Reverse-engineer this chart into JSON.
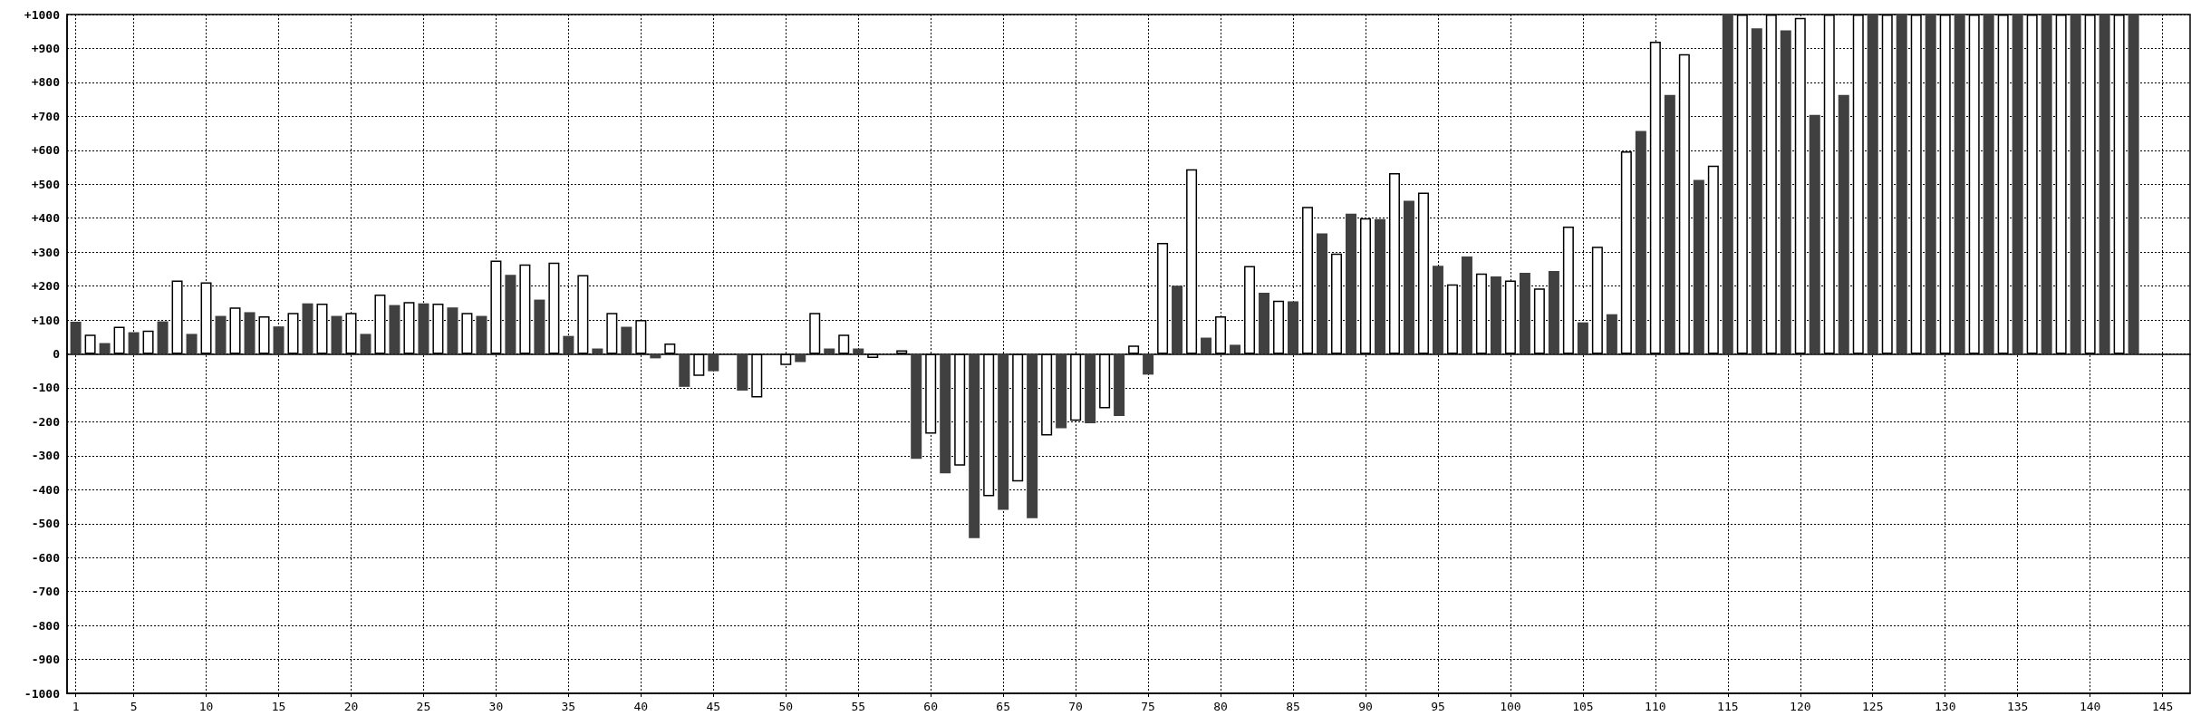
{
  "chart_data": {
    "type": "bar",
    "series": [
      {
        "color": "#404040",
        "x": [
          1,
          3,
          5,
          7,
          9,
          11,
          13,
          15,
          17,
          19,
          21,
          23,
          25,
          27,
          29,
          31,
          33,
          35,
          37,
          39,
          41,
          43,
          45,
          47,
          49,
          51,
          53,
          55,
          57,
          59,
          61,
          63,
          65,
          67,
          69,
          71,
          73,
          75,
          77,
          79,
          81,
          83,
          85,
          87,
          89,
          91,
          93,
          95,
          97,
          99,
          101,
          103,
          105,
          107,
          109,
          111,
          113,
          115,
          117,
          119,
          121,
          123,
          125,
          127,
          129,
          131,
          133,
          135,
          137,
          139,
          141,
          143
        ],
        "values": [
          95,
          32,
          64,
          96,
          59,
          112,
          123,
          81,
          149,
          112,
          59,
          144,
          149,
          137,
          112,
          233,
          160,
          53,
          16,
          80,
          -13,
          -97,
          -51,
          -108,
          null,
          -24,
          16,
          16,
          null,
          -309,
          -352,
          -543,
          -459,
          -484,
          -219,
          -204,
          -183,
          -61,
          201,
          48,
          27,
          180,
          155,
          355,
          413,
          397,
          451,
          260,
          287,
          228,
          239,
          244,
          93,
          117,
          657,
          763,
          513,
          1000,
          959,
          953,
          704,
          763,
          1000,
          1000,
          1000,
          1000,
          1000,
          1000,
          1000,
          1000,
          1000,
          1000
        ]
      },
      {
        "color": "#ffffff",
        "x": [
          2,
          4,
          6,
          8,
          10,
          12,
          14,
          16,
          18,
          20,
          22,
          24,
          26,
          28,
          30,
          32,
          34,
          36,
          38,
          40,
          42,
          44,
          46,
          48,
          50,
          52,
          54,
          56,
          58,
          60,
          62,
          64,
          66,
          68,
          70,
          72,
          74,
          76,
          78,
          80,
          82,
          84,
          86,
          88,
          90,
          92,
          94,
          96,
          98,
          100,
          102,
          104,
          106,
          108,
          110,
          112,
          114,
          116,
          118,
          120,
          122,
          124,
          126,
          128,
          130,
          132,
          134,
          136,
          138,
          140,
          142
        ],
        "values": [
          57,
          80,
          69,
          216,
          211,
          137,
          111,
          121,
          148,
          121,
          175,
          153,
          148,
          121,
          275,
          264,
          269,
          232,
          121,
          100,
          31,
          -65,
          null,
          -128,
          -33,
          121,
          57,
          -12,
          11,
          -235,
          -329,
          -419,
          -376,
          -240,
          -197,
          -160,
          25,
          327,
          544,
          111,
          259,
          157,
          433,
          296,
          400,
          533,
          475,
          205,
          237,
          216,
          193,
          375,
          316,
          597,
          920,
          883,
          555,
          1000,
          1000,
          990,
          1000,
          1000,
          1000,
          1000,
          1000,
          1000,
          1000,
          1000,
          1000,
          1000,
          1000
        ]
      }
    ],
    "xlim": [
      0.4,
      146.9
    ],
    "xticks": [
      1,
      5,
      10,
      15,
      20,
      25,
      30,
      35,
      40,
      45,
      50,
      55,
      60,
      65,
      70,
      75,
      80,
      85,
      90,
      95,
      100,
      105,
      110,
      115,
      120,
      125,
      130,
      135,
      140,
      145
    ],
    "ylim": [
      -1000,
      1000
    ],
    "yticks": [
      -1000,
      -900,
      -800,
      -700,
      -600,
      -500,
      -400,
      -300,
      -200,
      -100,
      0,
      {
        "value": 100,
        "label": "+100"
      },
      {
        "value": 200,
        "label": "+200"
      },
      {
        "value": 300,
        "label": "+300"
      },
      {
        "value": 400,
        "label": "+400"
      },
      {
        "value": 500,
        "label": "+500"
      },
      {
        "value": 600,
        "label": "+600"
      },
      {
        "value": 700,
        "label": "+700"
      },
      {
        "value": 800,
        "label": "+800"
      },
      {
        "value": 900,
        "label": "+900"
      },
      {
        "value": 1000,
        "label": "+1000"
      }
    ],
    "grid": true
  }
}
